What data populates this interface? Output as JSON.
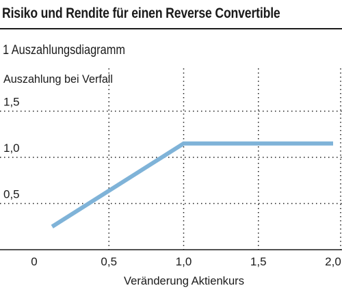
{
  "header": {
    "title": "Risiko und Rendite für einen Reverse Convertible",
    "subtitle": "1  Auszahlungsdiagramm"
  },
  "colors": {
    "line": "#7fb3d8",
    "text": "#1a1a1a",
    "grid": "#1a1a1a"
  },
  "chart_data": {
    "type": "line",
    "title": "",
    "xlabel": "Veränderung Aktienkurs",
    "ylabel": "Auszahlung bei Verfall",
    "xlim": [
      0,
      2.0
    ],
    "ylim": [
      0,
      2.0
    ],
    "x_ticks": [
      0,
      0.5,
      1.0,
      1.5,
      2.0
    ],
    "x_tick_labels": [
      "0",
      "0,5",
      "1,0",
      "1,5",
      "2,0"
    ],
    "y_ticks": [
      0.5,
      1.0,
      1.5
    ],
    "y_tick_labels": [
      "0,5",
      "1,0",
      "1,5"
    ],
    "grid": "dotted",
    "series": [
      {
        "x": [
          0.12,
          1.0,
          2.0
        ],
        "y": [
          0.25,
          1.15,
          1.15
        ]
      }
    ]
  }
}
